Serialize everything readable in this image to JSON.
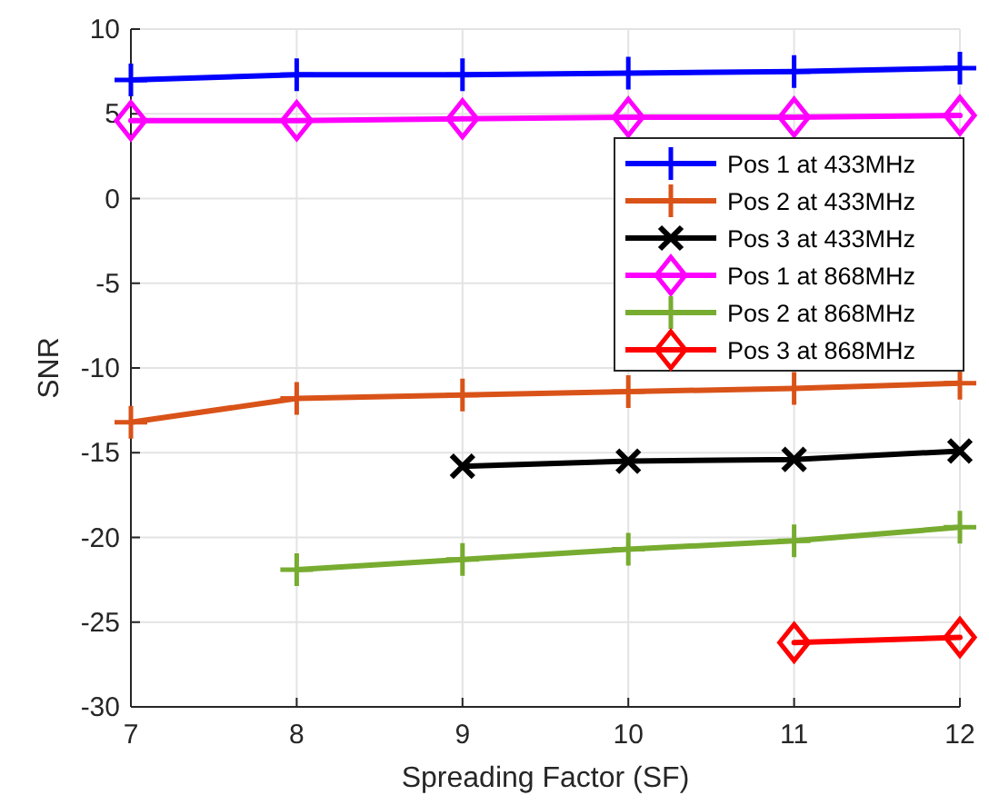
{
  "chart_data": {
    "type": "line",
    "xlabel": "Spreading Factor (SF)",
    "ylabel": "SNR",
    "xlim": [
      7,
      12
    ],
    "xticks": [
      7,
      8,
      9,
      10,
      11,
      12
    ],
    "ylim": [
      -30,
      10
    ],
    "yticks": [
      -30,
      -25,
      -20,
      -15,
      -10,
      -5,
      0,
      5,
      10
    ],
    "grid": true,
    "legend": "top right",
    "line_style": "solid",
    "series": [
      {
        "name": "Pos 1 at 433MHz",
        "color": "#0000ff",
        "marker": "plus",
        "x": [
          7,
          8,
          9,
          10,
          11,
          12
        ],
        "values": [
          7.0,
          7.3,
          7.3,
          7.4,
          7.5,
          7.7
        ]
      },
      {
        "name": "Pos 2 at 433MHz",
        "color": "#d95319",
        "marker": "plus",
        "x": [
          7,
          8,
          9,
          10,
          11,
          12
        ],
        "values": [
          -13.2,
          -11.8,
          -11.6,
          -11.4,
          -11.2,
          -10.9
        ]
      },
      {
        "name": "Pos 3 at 433MHz",
        "color": "#000000",
        "marker": "cross",
        "x": [
          9,
          10,
          11,
          12
        ],
        "values": [
          -15.8,
          -15.5,
          -15.4,
          -14.9
        ]
      },
      {
        "name": "Pos 1 at 868MHz",
        "color": "#ff00ff",
        "marker": "diamond",
        "x": [
          7,
          8,
          9,
          10,
          11,
          12
        ],
        "values": [
          4.6,
          4.6,
          4.7,
          4.8,
          4.8,
          4.9
        ]
      },
      {
        "name": "Pos 2 at 868MHz",
        "color": "#77ac30",
        "marker": "plus",
        "x": [
          8,
          9,
          10,
          11,
          12
        ],
        "values": [
          -21.9,
          -21.3,
          -20.7,
          -20.2,
          -19.4
        ]
      },
      {
        "name": "Pos 3 at 868MHz",
        "color": "#ff0000",
        "marker": "diamond",
        "x": [
          11,
          12
        ],
        "values": [
          -26.2,
          -25.9
        ]
      }
    ]
  }
}
